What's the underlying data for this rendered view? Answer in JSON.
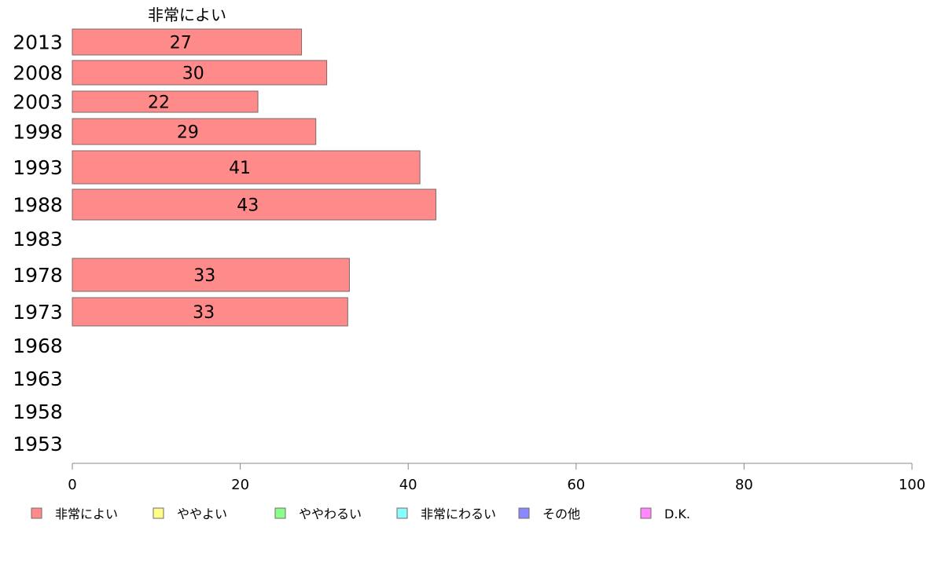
{
  "chart_data": {
    "type": "bar",
    "orientation": "horizontal",
    "stacked": true,
    "title": "",
    "xlabel": "",
    "ylabel": "",
    "xlim": [
      0,
      100
    ],
    "x_ticks": [
      0,
      20,
      40,
      60,
      80,
      100
    ],
    "grid": false,
    "legend_position": "bottom",
    "series_header": "非常によい",
    "categories": [
      "2013",
      "2008",
      "2003",
      "1998",
      "1993",
      "1988",
      "1983",
      "1978",
      "1973",
      "1968",
      "1963",
      "1958",
      "1953"
    ],
    "series": [
      {
        "name": "非常によい",
        "color": "#ff8a8a",
        "values": [
          27.3,
          30.3,
          22.1,
          29.0,
          41.4,
          43.3,
          null,
          33.0,
          32.8,
          null,
          null,
          null,
          null
        ]
      },
      {
        "name": "ややよい",
        "color": "#ffff88",
        "values": [
          null,
          null,
          null,
          null,
          null,
          null,
          null,
          null,
          null,
          null,
          null,
          null,
          null
        ]
      },
      {
        "name": "ややわるい",
        "color": "#88ff88",
        "values": [
          null,
          null,
          null,
          null,
          null,
          null,
          null,
          null,
          null,
          null,
          null,
          null,
          null
        ]
      },
      {
        "name": "非常にわるい",
        "color": "#88ffff",
        "values": [
          null,
          null,
          null,
          null,
          null,
          null,
          null,
          null,
          null,
          null,
          null,
          null,
          null
        ]
      },
      {
        "name": "その他",
        "color": "#8888ff",
        "values": [
          null,
          null,
          null,
          null,
          null,
          null,
          null,
          null,
          null,
          null,
          null,
          null,
          null
        ]
      },
      {
        "name": "D.K.",
        "color": "#ff88ff",
        "values": [
          null,
          null,
          null,
          null,
          null,
          null,
          null,
          null,
          null,
          null,
          null,
          null,
          null
        ]
      }
    ],
    "data_labels": [
      "27",
      "30",
      "22",
      "29",
      "41",
      "43",
      "",
      "33",
      "33",
      "",
      "",
      "",
      ""
    ]
  }
}
